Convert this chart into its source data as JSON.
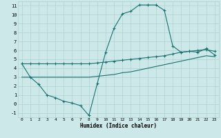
{
  "xlabel": "Humidex (Indice chaleur)",
  "bg_color": "#cce8e8",
  "line_color": "#1a7070",
  "grid_color": "#b0d0d0",
  "xlim": [
    -0.5,
    23.5
  ],
  "ylim": [
    -1.5,
    11.5
  ],
  "xticks": [
    0,
    1,
    2,
    3,
    4,
    5,
    6,
    7,
    8,
    9,
    10,
    11,
    12,
    13,
    14,
    15,
    16,
    17,
    18,
    19,
    20,
    21,
    22,
    23
  ],
  "yticks": [
    -1,
    0,
    1,
    2,
    3,
    4,
    5,
    6,
    7,
    8,
    9,
    10,
    11
  ],
  "line1_x": [
    0,
    1,
    2,
    3,
    4,
    5,
    6,
    7,
    8,
    9,
    10,
    11,
    12,
    13,
    14,
    15,
    16,
    17,
    18,
    19,
    20,
    21,
    22,
    23
  ],
  "line1_y": [
    4.5,
    3.0,
    2.2,
    1.0,
    0.7,
    0.3,
    0.1,
    -0.2,
    -1.3,
    2.3,
    5.8,
    8.5,
    10.1,
    10.4,
    11.1,
    11.1,
    11.1,
    10.5,
    6.5,
    5.8,
    5.9,
    5.8,
    6.2,
    5.5
  ],
  "line2_x": [
    0,
    1,
    2,
    3,
    4,
    5,
    6,
    7,
    8,
    9,
    10,
    11,
    12,
    13,
    14,
    15,
    16,
    17,
    18,
    19,
    20,
    21,
    22,
    23
  ],
  "line2_y": [
    4.5,
    4.5,
    4.5,
    4.5,
    4.5,
    4.5,
    4.5,
    4.5,
    4.5,
    4.6,
    4.7,
    4.8,
    4.9,
    5.0,
    5.1,
    5.2,
    5.3,
    5.4,
    5.6,
    5.8,
    5.9,
    6.0,
    6.1,
    5.9
  ],
  "line3_x": [
    0,
    1,
    2,
    3,
    4,
    5,
    6,
    7,
    8,
    9,
    10,
    11,
    12,
    13,
    14,
    15,
    16,
    17,
    18,
    19,
    20,
    21,
    22,
    23
  ],
  "line3_y": [
    3.0,
    3.0,
    3.0,
    3.0,
    3.0,
    3.0,
    3.0,
    3.0,
    3.0,
    3.1,
    3.2,
    3.3,
    3.5,
    3.6,
    3.8,
    4.0,
    4.2,
    4.4,
    4.6,
    4.8,
    5.0,
    5.2,
    5.4,
    5.3
  ]
}
